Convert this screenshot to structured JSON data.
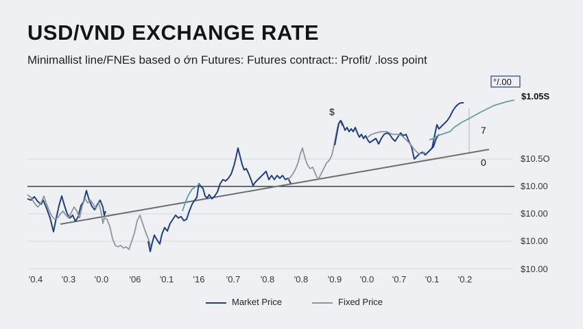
{
  "title": "USD/VND EXCHANGE RATE",
  "subtitle": "Minimallist line/FNEs based o ớn Futures: Futures contract:: Profit/ .loss point",
  "colors": {
    "market": "#1f3f7a",
    "fixed": "#8e949e",
    "teal": "#5f9e9e",
    "trend": "#6b6d73",
    "reference": "#1a1a1a",
    "grid": "#d6d9de"
  },
  "chart_data": {
    "type": "line",
    "x_tick_labels": [
      "'0.4",
      "'0.3",
      "'0.0",
      "'06",
      "'0.1",
      "'16",
      "'0.7",
      "'0.8",
      "'0.8",
      "'0.9",
      "'0.0",
      "'0.7",
      "'0.1",
      "'0.2"
    ],
    "y_tick_labels": [
      "$10.5O",
      "$10.00",
      "$10.00",
      "$10.00",
      "$10.00"
    ],
    "legend": [
      "Market Price",
      "Fixed Price"
    ],
    "annotations": {
      "dollar": "$",
      "boxed": "°/.00",
      "price": "$1.05S",
      "seven": "7",
      "zero": "0"
    },
    "series": [
      {
        "name": "Market Price",
        "points": [
          [
            40,
            290
          ],
          [
            45,
            292
          ],
          [
            50,
            287
          ],
          [
            55,
            294
          ],
          [
            60,
            298
          ],
          [
            63,
            292
          ],
          [
            68,
            304
          ],
          [
            73,
            318
          ],
          [
            78,
            338
          ],
          [
            82,
            318
          ],
          [
            86,
            300
          ],
          [
            90,
            286
          ],
          [
            94,
            300
          ],
          [
            98,
            312
          ],
          [
            102,
            318
          ],
          [
            106,
            314
          ],
          [
            110,
            323
          ],
          [
            114,
            316
          ],
          [
            118,
            300
          ],
          [
            122,
            294
          ],
          [
            126,
            278
          ],
          [
            130,
            292
          ],
          [
            134,
            301
          ],
          [
            138,
            306
          ],
          [
            142,
            298
          ],
          [
            146,
            292
          ],
          [
            150,
            302
          ],
          [
            152,
            314
          ],
          [
            154,
            308
          ]
        ]
      },
      {
        "name": "Fixed Price",
        "points": [
          [
            40,
            284
          ],
          [
            45,
            288
          ],
          [
            50,
            296
          ],
          [
            55,
            302
          ],
          [
            60,
            296
          ],
          [
            64,
            286
          ],
          [
            68,
            298
          ],
          [
            72,
            308
          ],
          [
            76,
            316
          ],
          [
            80,
            320
          ],
          [
            84,
            318
          ],
          [
            88,
            312
          ],
          [
            92,
            308
          ],
          [
            96,
            314
          ],
          [
            100,
            318
          ],
          [
            104,
            310
          ],
          [
            108,
            302
          ],
          [
            112,
            308
          ],
          [
            116,
            318
          ],
          [
            120,
            300
          ],
          [
            124,
            290
          ],
          [
            128,
            296
          ],
          [
            132,
            292
          ],
          [
            136,
            298
          ],
          [
            140,
            304
          ],
          [
            144,
            296
          ],
          [
            148,
            312
          ],
          [
            150,
            326
          ],
          [
            152,
            318
          ],
          [
            156,
            320
          ],
          [
            160,
            330
          ],
          [
            164,
            348
          ],
          [
            168,
            358
          ],
          [
            172,
            360
          ],
          [
            176,
            358
          ],
          [
            180,
            362
          ],
          [
            184,
            360
          ],
          [
            188,
            364
          ],
          [
            192,
            352
          ],
          [
            196,
            340
          ],
          [
            200,
            322
          ],
          [
            204,
            314
          ],
          [
            208,
            326
          ],
          [
            212,
            338
          ],
          [
            216,
            348
          ],
          [
            220,
            360
          ]
        ]
      },
      {
        "name": "Market Price",
        "points": [
          [
            216,
            352
          ],
          [
            219,
            367
          ],
          [
            222,
            354
          ],
          [
            225,
            343
          ],
          [
            229,
            350
          ],
          [
            233,
            356
          ],
          [
            236,
            342
          ],
          [
            240,
            332
          ],
          [
            244,
            337
          ],
          [
            248,
            326
          ],
          [
            252,
            320
          ],
          [
            256,
            314
          ],
          [
            260,
            318
          ],
          [
            264,
            316
          ],
          [
            268,
            322
          ],
          [
            272,
            320
          ],
          [
            276,
            308
          ],
          [
            280,
            298
          ],
          [
            284,
            292
          ],
          [
            287,
            288
          ],
          [
            290,
            268
          ],
          [
            293,
            272
          ],
          [
            296,
            275
          ],
          [
            299,
            286
          ],
          [
            302,
            289
          ],
          [
            305,
            284
          ],
          [
            309,
            290
          ],
          [
            313,
            286
          ],
          [
            317,
            280
          ],
          [
            321,
            268
          ],
          [
            325,
            262
          ],
          [
            329,
            264
          ],
          [
            333,
            260
          ],
          [
            337,
            254
          ],
          [
            341,
            242
          ],
          [
            344,
            230
          ],
          [
            347,
            216
          ],
          [
            350,
            228
          ],
          [
            353,
            240
          ],
          [
            356,
            248
          ],
          [
            359,
            246
          ],
          [
            362,
            252
          ],
          [
            366,
            262
          ],
          [
            369,
            271
          ],
          [
            372,
            266
          ],
          [
            376,
            262
          ],
          [
            380,
            258
          ],
          [
            384,
            254
          ],
          [
            388,
            250
          ],
          [
            392,
            262
          ],
          [
            396,
            256
          ],
          [
            400,
            262
          ],
          [
            404,
            256
          ],
          [
            408,
            260
          ],
          [
            412,
            256
          ],
          [
            416,
            262
          ],
          [
            420,
            260
          ],
          [
            424,
            268
          ]
        ]
      },
      {
        "name": "Fixed Price",
        "points": [
          [
            420,
            262
          ],
          [
            424,
            258
          ],
          [
            428,
            252
          ],
          [
            432,
            244
          ],
          [
            435,
            236
          ],
          [
            438,
            224
          ],
          [
            441,
            216
          ],
          [
            444,
            228
          ],
          [
            448,
            240
          ],
          [
            452,
            246
          ],
          [
            456,
            244
          ],
          [
            460,
            254
          ],
          [
            464,
            262
          ],
          [
            468,
            254
          ],
          [
            472,
            246
          ],
          [
            476,
            238
          ],
          [
            480,
            234
          ],
          [
            484,
            226
          ],
          [
            487,
            212
          ],
          [
            490,
            196
          ],
          [
            493,
            182
          ],
          [
            496,
            176
          ],
          [
            499,
            184
          ]
        ]
      },
      {
        "name": "Market Price",
        "points": [
          [
            488,
            212
          ],
          [
            491,
            196
          ],
          [
            494,
            180
          ],
          [
            497,
            176
          ],
          [
            500,
            182
          ],
          [
            503,
            190
          ],
          [
            506,
            186
          ],
          [
            509,
            192
          ],
          [
            512,
            188
          ],
          [
            515,
            192
          ],
          [
            518,
            186
          ],
          [
            521,
            194
          ],
          [
            524,
            200
          ],
          [
            527,
            196
          ],
          [
            530,
            202
          ],
          [
            533,
            198
          ],
          [
            536,
            204
          ],
          [
            539,
            208
          ],
          [
            542,
            206
          ],
          [
            545,
            204
          ],
          [
            548,
            202
          ],
          [
            552,
            210
          ],
          [
            556,
            202
          ],
          [
            560,
            196
          ],
          [
            564,
            194
          ],
          [
            568,
            196
          ],
          [
            572,
            202
          ],
          [
            576,
            206
          ],
          [
            580,
            200
          ],
          [
            584,
            194
          ],
          [
            588,
            198
          ],
          [
            592,
            196
          ],
          [
            596,
            206
          ],
          [
            600,
            214
          ],
          [
            604,
            232
          ],
          [
            608,
            228
          ],
          [
            612,
            224
          ],
          [
            616,
            222
          ],
          [
            620,
            226
          ],
          [
            624,
            222
          ],
          [
            628,
            218
          ],
          [
            632,
            214
          ],
          [
            636,
            202
          ],
          [
            640,
            196
          ]
        ]
      },
      {
        "name": "Fixed Price",
        "points": [
          [
            536,
            200
          ],
          [
            542,
            196
          ],
          [
            548,
            194
          ],
          [
            556,
            192
          ],
          [
            564,
            192
          ],
          [
            572,
            196
          ],
          [
            580,
            196
          ],
          [
            586,
            198
          ],
          [
            592,
            204
          ],
          [
            598,
            210
          ],
          [
            604,
            218
          ],
          [
            610,
            224
          ],
          [
            616,
            224
          ],
          [
            620,
            222
          ]
        ]
      },
      {
        "name": "Market Price",
        "points": [
          [
            626,
            220
          ],
          [
            630,
            216
          ],
          [
            634,
            196
          ],
          [
            637,
            182
          ],
          [
            640,
            188
          ],
          [
            644,
            184
          ],
          [
            648,
            180
          ],
          [
            652,
            176
          ],
          [
            656,
            170
          ],
          [
            660,
            162
          ],
          [
            664,
            156
          ],
          [
            668,
            152
          ],
          [
            672,
            150
          ],
          [
            676,
            150
          ]
        ]
      }
    ],
    "teal_segments": [
      {
        "name": "",
        "points": [
          [
            266,
            308
          ],
          [
            270,
            296
          ],
          [
            274,
            286
          ],
          [
            280,
            276
          ],
          [
            286,
            272
          ],
          [
            292,
            268
          ]
        ]
      },
      {
        "name": "",
        "points": [
          [
            626,
            204
          ],
          [
            632,
            202
          ],
          [
            638,
            198
          ],
          [
            644,
            196
          ],
          [
            650,
            194
          ],
          [
            656,
            192
          ],
          [
            662,
            186
          ],
          [
            668,
            182
          ],
          [
            674,
            178
          ],
          [
            682,
            174
          ],
          [
            700,
            164
          ],
          [
            720,
            154
          ],
          [
            740,
            148
          ],
          [
            750,
            146
          ]
        ]
      }
    ],
    "trend_line": {
      "from": [
        88,
        327
      ],
      "to": [
        713,
        218
      ]
    },
    "reference_y": 272,
    "ylim_px": [
      110,
      400
    ]
  }
}
